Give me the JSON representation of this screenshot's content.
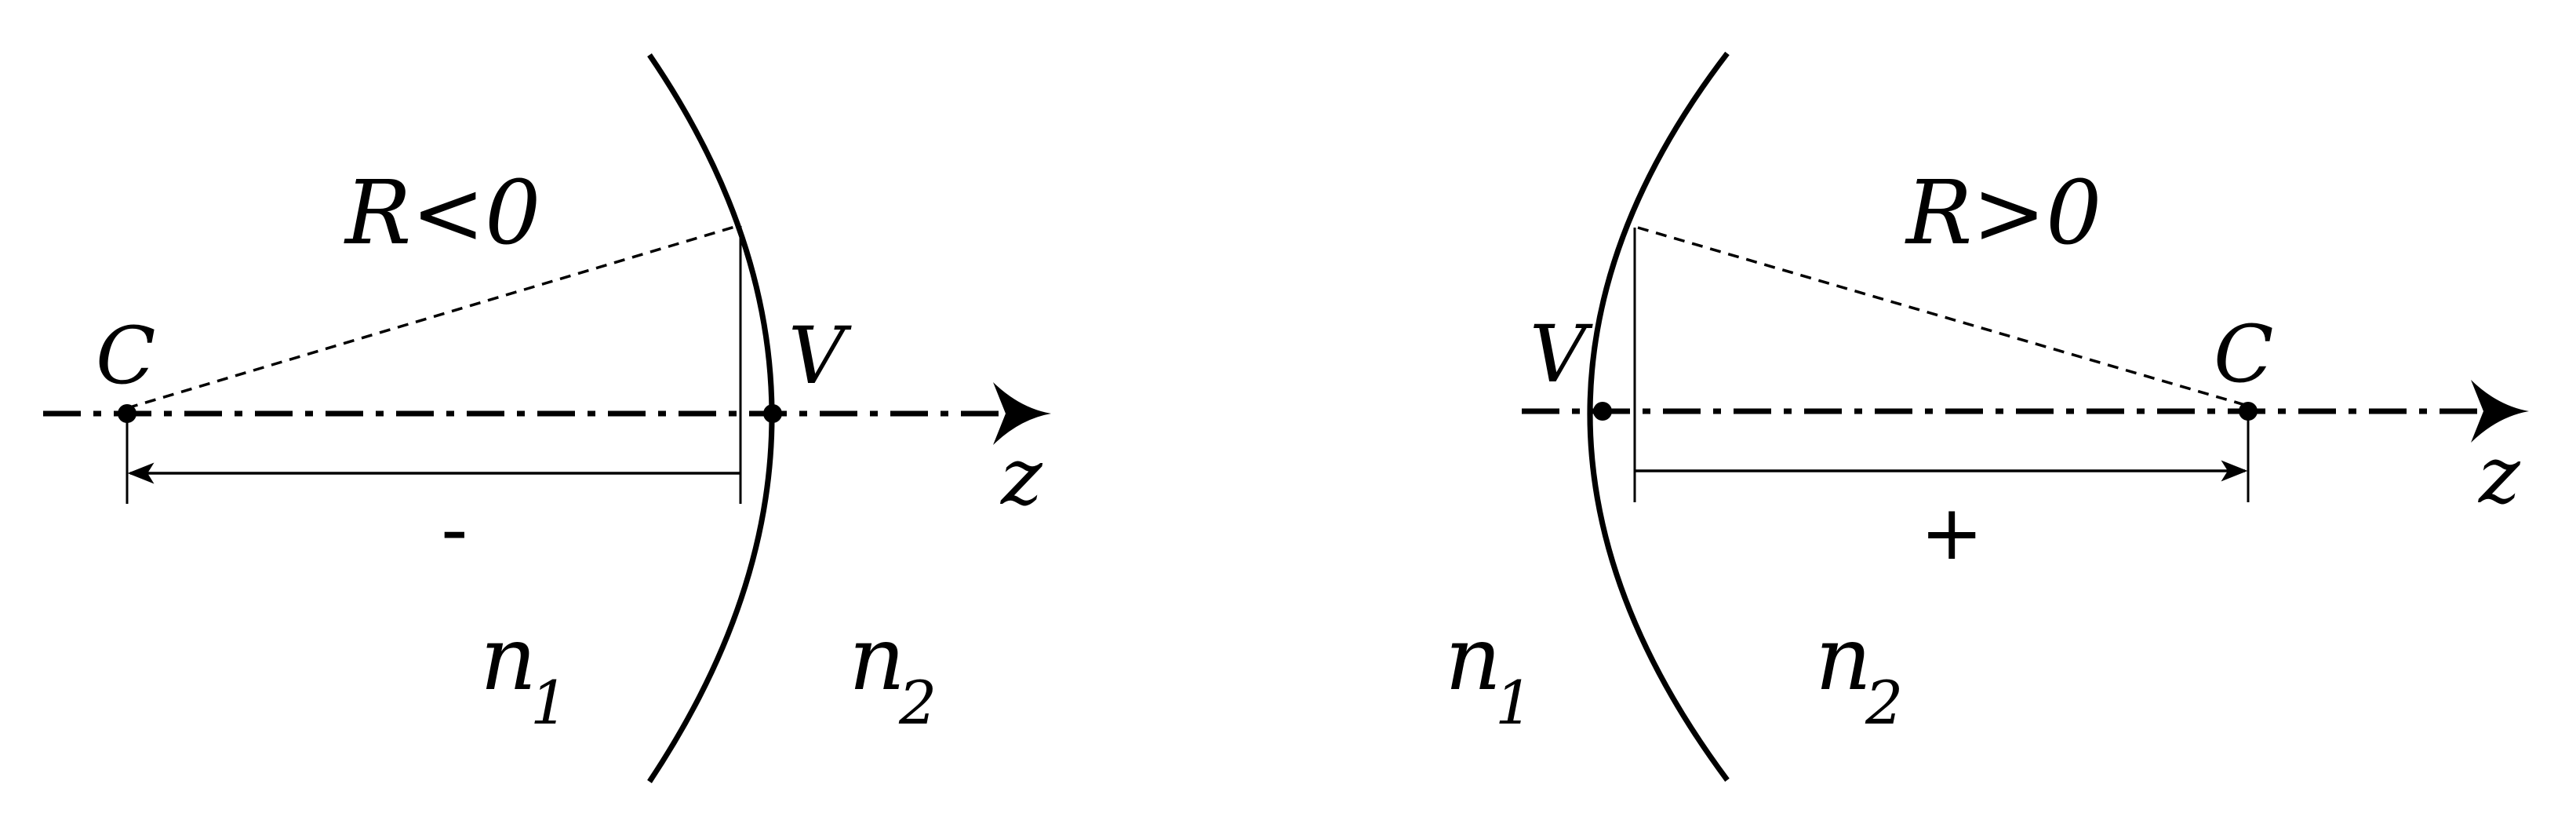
{
  "left_panel": {
    "radius_label": "R<0",
    "center_label": "C",
    "vertex_label": "V",
    "axis_label": "z",
    "sign_label": "-",
    "medium1_symbol": "n",
    "medium1_subscript": "1",
    "medium2_symbol": "n",
    "medium2_subscript": "2"
  },
  "right_panel": {
    "radius_label": "R>0",
    "center_label": "C",
    "vertex_label": "V",
    "axis_label": "z",
    "sign_label": "+",
    "medium1_symbol": "n",
    "medium1_subscript": "1",
    "medium2_symbol": "n",
    "medium2_subscript": "2"
  },
  "colors": {
    "stroke": "#000000",
    "background": "#ffffff"
  }
}
